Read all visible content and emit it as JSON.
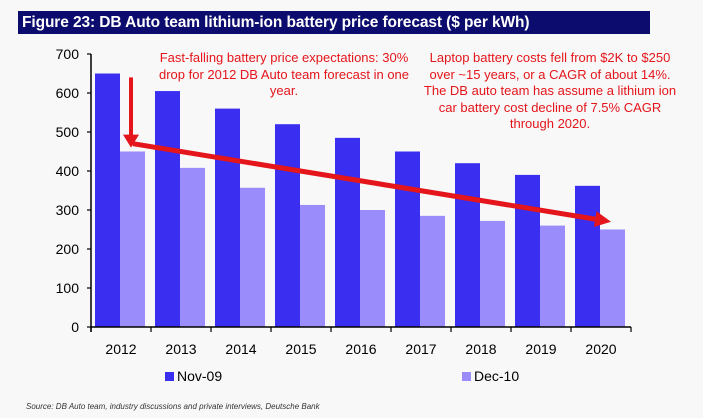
{
  "title": "Figure 23: DB Auto team lithium-ion battery price forecast ($ per kWh)",
  "annotations": {
    "left": "Fast-falling battery price expectations: 30% drop for 2012 DB Auto team forecast in one year.",
    "right": "Laptop battery costs fell from $2K to $250 over ~15 years, or a CAGR of about 14%. The DB auto team has assume a lithium ion car battery cost decline of 7.5% CAGR through 2020."
  },
  "source": "Source: DB Auto team, industry discussions and private interviews, Deutsche Bank",
  "colors": {
    "title_bg": "#0c0c6e",
    "nov09": "#3a2ef0",
    "dec10": "#9a8cfb",
    "annotation": "#e4151b"
  },
  "chart_data": {
    "type": "bar",
    "title": "Figure 23: DB Auto team lithium-ion battery price forecast ($ per kWh)",
    "xlabel": "",
    "ylabel": "$ per kWh",
    "categories": [
      "2012",
      "2013",
      "2014",
      "2015",
      "2016",
      "2017",
      "2018",
      "2019",
      "2020"
    ],
    "series": [
      {
        "name": "Nov-09",
        "values": [
          650,
          605,
          560,
          520,
          485,
          450,
          420,
          390,
          362
        ]
      },
      {
        "name": "Dec-10",
        "values": [
          450,
          408,
          357,
          313,
          300,
          285,
          272,
          260,
          250
        ]
      }
    ],
    "ylim": [
      0,
      700
    ],
    "yticks": [
      0,
      100,
      200,
      300,
      400,
      500,
      600,
      700
    ],
    "grid": false,
    "legend": "bottom",
    "annotations": [
      {
        "type": "arrow",
        "description": "Downward red arrow above 2012 Dec-10 bar",
        "x": "2012",
        "from_value": 640,
        "to_value": 460
      },
      {
        "type": "arrow",
        "description": "Red trend arrow from 2012 to 2020",
        "from": {
          "x": "2012",
          "value": 470
        },
        "to": {
          "x": "2020",
          "value": 270
        }
      }
    ]
  }
}
